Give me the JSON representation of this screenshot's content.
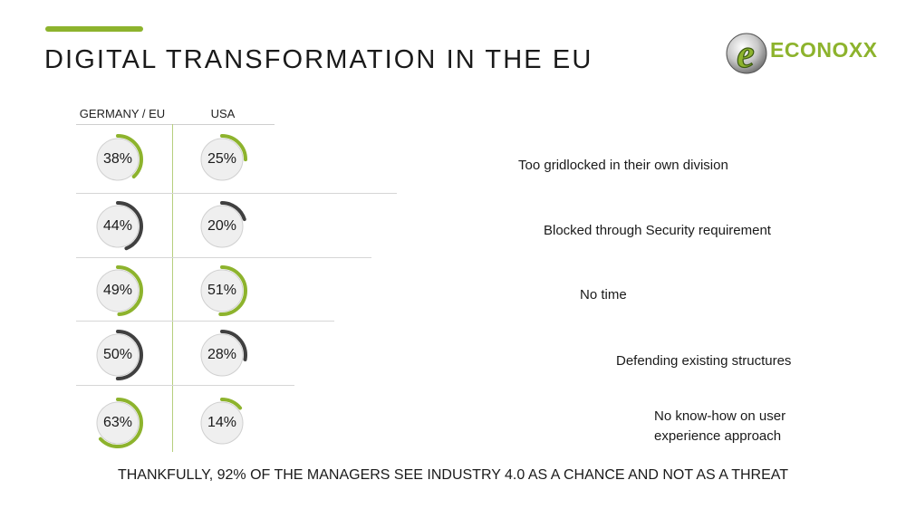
{
  "header": {
    "title": "DIGITAL TRANSFORMATION IN THE EU"
  },
  "logo": {
    "text": "ECONOXX",
    "letter": "e",
    "color": "#8db32d"
  },
  "table": {
    "columns": [
      "GERMANY / EU",
      "USA"
    ],
    "rows": [
      {
        "germany": 38,
        "usa": 25,
        "reason": "Too gridlocked in their own division",
        "ring_color": "#8db32d"
      },
      {
        "germany": 44,
        "usa": 20,
        "reason": "Blocked through Security requirement",
        "ring_color": "#404040"
      },
      {
        "germany": 49,
        "usa": 51,
        "reason": "No time",
        "ring_color": "#8db32d"
      },
      {
        "germany": 50,
        "usa": 28,
        "reason": "Defending existing structures",
        "ring_color": "#404040"
      },
      {
        "germany": 63,
        "usa": 14,
        "reason": "No know-how on user experience approach",
        "ring_color": "#8db32d"
      }
    ]
  },
  "footer": {
    "text": "THANKFULLY, 92% OF THE MANAGERS SEE INDUSTRY 4.0 AS A CHANCE AND NOT AS A THREAT"
  },
  "colors": {
    "accent": "#8db32d",
    "dark": "#404040",
    "track": "#efefef"
  }
}
